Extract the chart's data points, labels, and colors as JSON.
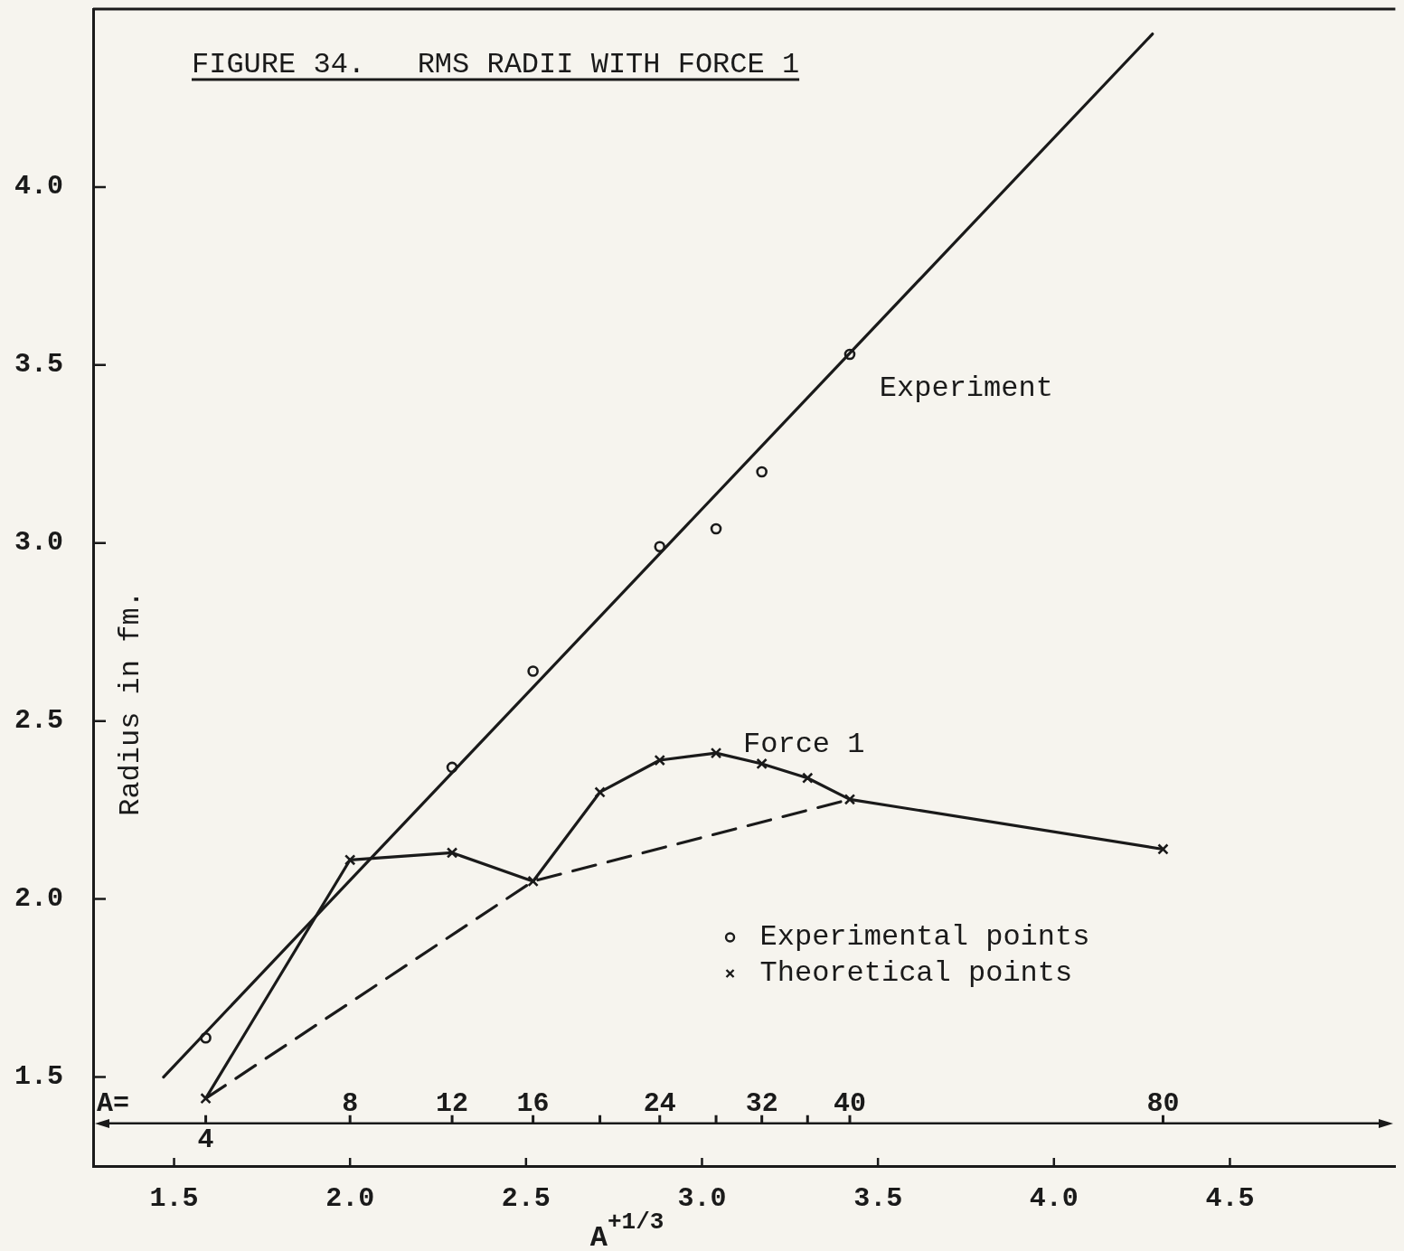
{
  "chart_data": {
    "type": "line",
    "title": "FIGURE 34.   RMS RADII WITH FORCE 1",
    "xlabel": "A$^{+1/3}$",
    "ylabel": "Radius in fm.",
    "xlim": [
      1.27,
      4.97
    ],
    "ylim": [
      1.25,
      4.5
    ],
    "xticks": [
      1.5,
      {
        "value": 2,
        "label": "2.0"
      },
      2.5,
      {
        "value": 3,
        "label": "3.0"
      },
      3.5,
      {
        "value": 4,
        "label": "4.0"
      },
      4.5
    ],
    "yticks": [
      1.5,
      {
        "value": 2,
        "label": "2.0"
      },
      2.5,
      {
        "value": 3,
        "label": "3.0"
      },
      3.5,
      {
        "value": 4,
        "label": "4.0"
      }
    ],
    "ref_lines": [
      {
        "axis": "y",
        "value": 1.37,
        "label": "A=",
        "color": "#1a1a1a"
      }
    ],
    "annotations": [
      {
        "text": "4",
        "x": 1.59,
        "y": 1.37
      },
      {
        "text": "8",
        "x": 2,
        "y": 1.37
      },
      {
        "text": "12",
        "x": 2.29,
        "y": 1.37
      },
      {
        "text": "16",
        "x": 2.52,
        "y": 1.37
      },
      {
        "text": "24",
        "x": 2.88,
        "y": 1.37
      },
      {
        "text": "32",
        "x": 3.17,
        "y": 1.37
      },
      {
        "text": "40",
        "x": 3.42,
        "y": 1.37
      },
      {
        "text": "80",
        "x": 4.31,
        "y": 1.37
      }
    ],
    "legend": "bottom right",
    "series": [
      {
        "name": "Experiment",
        "type": "line",
        "color": "#1a1a1a",
        "x": [
          1.47,
          4.28
        ],
        "values": [
          1.5,
          4.43
        ],
        "marker": "none",
        "line_style": "solid"
      },
      {
        "name": "Experimental points",
        "type": "scatter",
        "color": "#1a1a1a",
        "x": [
          1.59,
          2.29,
          2.52,
          2.88,
          3.04,
          3.17,
          3.42
        ],
        "values": [
          1.61,
          2.37,
          2.64,
          2.99,
          3.04,
          3.2,
          3.53
        ],
        "marker": "circle"
      },
      {
        "name": "Force 1",
        "type": "line",
        "color": "#1a1a1a",
        "x": [
          1.59,
          2,
          2.29,
          2.52,
          2.71,
          2.88,
          3.04,
          3.17,
          3.3,
          3.42,
          4.31
        ],
        "values": [
          1.44,
          2.11,
          2.13,
          2.05,
          2.3,
          2.39,
          2.41,
          2.38,
          2.34,
          2.28,
          2.14
        ],
        "marker": "none",
        "line_style": "solid"
      },
      {
        "name": "Theoretical points",
        "type": "scatter",
        "color": "#1a1a1a",
        "x": [
          1.59,
          2,
          2.29,
          2.52,
          2.71,
          2.88,
          3.04,
          3.17,
          3.3,
          3.42,
          4.31
        ],
        "values": [
          1.44,
          2.11,
          2.13,
          2.05,
          2.3,
          2.39,
          2.41,
          2.38,
          2.34,
          2.28,
          2.14
        ],
        "marker": "cross"
      },
      {
        "type": "line",
        "color": "#1a1a1a",
        "x": [
          1.59,
          2.52,
          3.42
        ],
        "values": [
          1.44,
          2.05,
          2.28
        ],
        "marker": "none",
        "line_style": "dashed"
      }
    ]
  }
}
